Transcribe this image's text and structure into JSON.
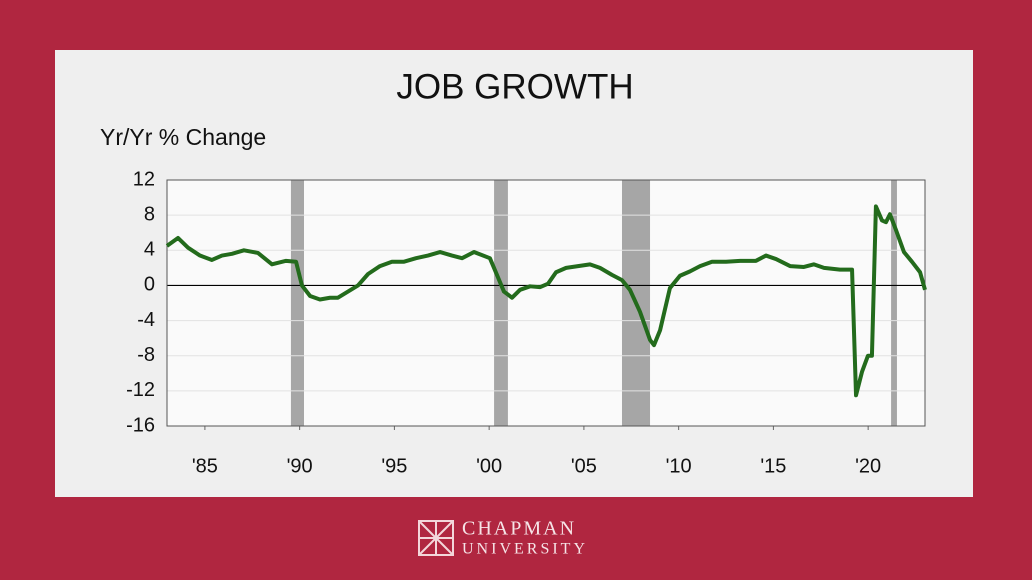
{
  "chart_data": {
    "type": "line",
    "title": "JOB GROWTH",
    "y_label": "Yr/Yr  % Change",
    "xlim": [
      1983,
      2023
    ],
    "xticks": [
      {
        "value": 1985,
        "label": "'85"
      },
      {
        "value": 1990,
        "label": "'90"
      },
      {
        "value": 1995,
        "label": "'95"
      },
      {
        "value": 2000,
        "label": "'00"
      },
      {
        "value": 2005,
        "label": "'05"
      },
      {
        "value": 2010,
        "label": "'10"
      },
      {
        "value": 2015,
        "label": "'15"
      },
      {
        "value": 2020,
        "label": "'20"
      }
    ],
    "ylim": [
      -16,
      12
    ],
    "yticks": [
      -16,
      -12,
      -8,
      -4,
      0,
      4,
      8,
      12
    ],
    "grid": true,
    "shaded_periods": [
      [
        1989.54,
        1990.23
      ],
      [
        2000.26,
        2000.99
      ],
      [
        2007.01,
        2008.49
      ],
      [
        2021.21,
        2021.52
      ]
    ],
    "shade_color": "#a6a6a6",
    "x": [
      1983,
      1983.58,
      1984.11,
      1984.74,
      1985.37,
      1985.9,
      1986.43,
      1987.06,
      1987.8,
      1988.54,
      1989.28,
      1989.81,
      1990.12,
      1990.55,
      1991.07,
      1991.6,
      1992.02,
      1992.55,
      1993.08,
      1993.61,
      1994.24,
      1994.87,
      1995.51,
      1996.14,
      1996.77,
      1997.41,
      1998.04,
      1998.57,
      1999.2,
      2000.04,
      2000.47,
      2000.78,
      2001.21,
      2001.63,
      2002.16,
      2002.68,
      2003.11,
      2003.53,
      2004.06,
      2004.69,
      2005.32,
      2005.85,
      2006.48,
      2007.01,
      2007.43,
      2007.96,
      2008.49,
      2008.7,
      2009.02,
      2009.54,
      2010.07,
      2010.6,
      2011.13,
      2011.76,
      2012.5,
      2013.24,
      2014.08,
      2014.61,
      2015.14,
      2015.88,
      2016.61,
      2017.14,
      2017.67,
      2018.51,
      2019.15,
      2019.36,
      2019.68,
      2019.99,
      2020.2,
      2020.41,
      2020.73,
      2020.94,
      2021.15,
      2021.47,
      2021.89,
      2022.31,
      2022.74,
      2023
    ],
    "series": [
      {
        "name": "Job growth",
        "color": "#236b1c",
        "values": [
          4.5,
          5.4,
          4.3,
          3.4,
          2.9,
          3.4,
          3.6,
          4.0,
          3.7,
          2.4,
          2.8,
          2.7,
          0,
          -1.2,
          -1.6,
          -1.4,
          -1.4,
          -0.7,
          0,
          1.3,
          2.2,
          2.7,
          2.7,
          3.1,
          3.4,
          3.8,
          3.4,
          3.1,
          3.8,
          3.1,
          0.9,
          -0.7,
          -1.4,
          -0.5,
          -0.1,
          -0.2,
          0.2,
          1.5,
          2.0,
          2.2,
          2.4,
          2.0,
          1.2,
          0.6,
          -0.5,
          -3.0,
          -6.2,
          -6.8,
          -5.1,
          -0.3,
          1.1,
          1.6,
          2.2,
          2.7,
          2.7,
          2.8,
          2.8,
          3.4,
          3.0,
          2.2,
          2.1,
          2.4,
          2.0,
          1.8,
          1.8,
          -12.5,
          -9.8,
          -8.0,
          -8.0,
          9.0,
          7.4,
          7.2,
          8.1,
          6.3,
          3.8,
          2.7,
          1.5,
          -0.5
        ]
      }
    ]
  },
  "footer": {
    "line1": "CHAPMAN",
    "line2": "UNIVERSITY"
  }
}
